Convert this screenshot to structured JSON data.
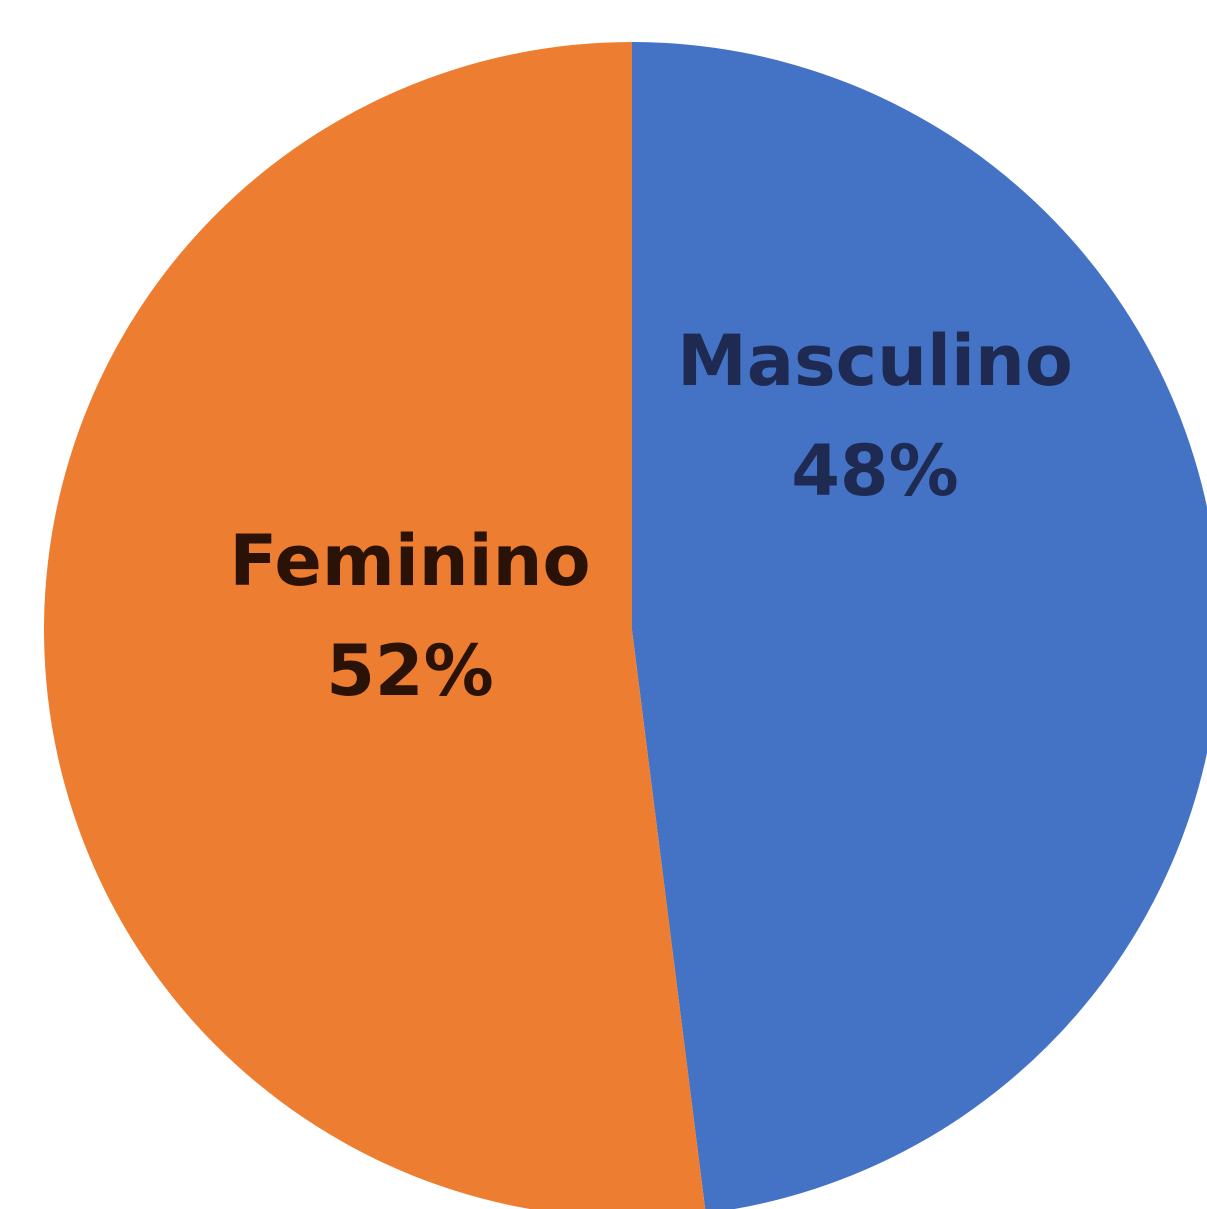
{
  "chart_data": {
    "type": "pie",
    "title": "",
    "slices": [
      {
        "name": "Masculino",
        "value": 48,
        "label": "48%",
        "color": "#4472C4",
        "text_color": "#1F2A52"
      },
      {
        "name": "Feminino",
        "value": 52,
        "label": "52%",
        "color": "#ED7D31",
        "text_color": "#2B1206"
      }
    ],
    "start_angle_deg": 0,
    "direction": "clockwise",
    "legend": "none",
    "data_labels": "inside, category name and percentage"
  }
}
